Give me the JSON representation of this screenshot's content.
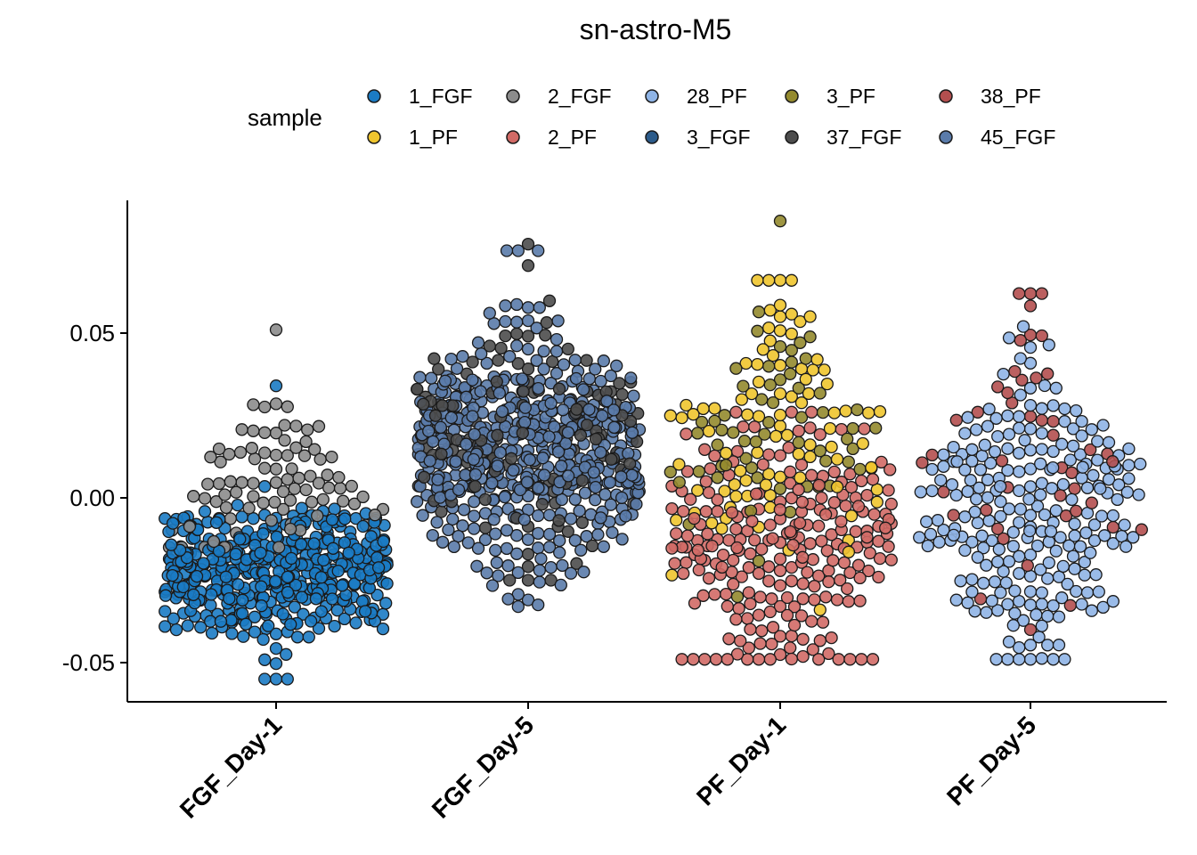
{
  "chart_data": {
    "type": "scatter",
    "subtype": "beeswarm",
    "title": "sn-astro-M5",
    "xlabel": "",
    "ylabel": "",
    "categories": [
      "FGF_Day-1",
      "FGF_Day-5",
      "PF_Day-1",
      "PF_Day-5"
    ],
    "yticks": [
      -0.05,
      0.0,
      0.05
    ],
    "ytick_labels": [
      "-0.05",
      "0.00",
      "0.05"
    ],
    "ylim": [
      -0.062,
      0.09
    ],
    "grid": false,
    "legend": {
      "title": "sample",
      "position": "top",
      "entries": [
        {
          "name": "1_FGF",
          "color": "#1B7BC4"
        },
        {
          "name": "1_PF",
          "color": "#EFC52E"
        },
        {
          "name": "2_FGF",
          "color": "#8C8C8C"
        },
        {
          "name": "2_PF",
          "color": "#D26A66"
        },
        {
          "name": "28_PF",
          "color": "#8FB4E6"
        },
        {
          "name": "3_FGF",
          "color": "#2C5B8A"
        },
        {
          "name": "3_PF",
          "color": "#948A2E"
        },
        {
          "name": "37_FGF",
          "color": "#4D4D4D"
        },
        {
          "name": "38_PF",
          "color": "#B44F4F"
        },
        {
          "name": "45_FGF",
          "color": "#5A7BAA"
        }
      ]
    },
    "series": [
      {
        "category": "FGF_Day-1",
        "groups": [
          {
            "sample": "1_FGF",
            "n": 440,
            "mean": -0.022,
            "sd": 0.011,
            "min": -0.055,
            "max": 0.034
          },
          {
            "sample": "2_FGF",
            "n": 90,
            "mean": 0.002,
            "sd": 0.011,
            "min": -0.015,
            "max": 0.051
          }
        ]
      },
      {
        "category": "FGF_Day-5",
        "groups": [
          {
            "sample": "45_FGF",
            "n": 480,
            "mean": 0.013,
            "sd": 0.017,
            "min": -0.033,
            "max": 0.075
          },
          {
            "sample": "37_FGF",
            "n": 150,
            "mean": 0.02,
            "sd": 0.019,
            "min": -0.025,
            "max": 0.077
          }
        ]
      },
      {
        "category": "PF_Day-1",
        "groups": [
          {
            "sample": "2_PF",
            "n": 240,
            "mean": -0.015,
            "sd": 0.018,
            "min": -0.049,
            "max": 0.026
          },
          {
            "sample": "1_PF",
            "n": 90,
            "mean": 0.02,
            "sd": 0.023,
            "min": -0.034,
            "max": 0.066
          },
          {
            "sample": "3_PF",
            "n": 60,
            "mean": 0.02,
            "sd": 0.017,
            "min": -0.03,
            "max": 0.084
          }
        ]
      },
      {
        "category": "PF_Day-5",
        "groups": [
          {
            "sample": "28_PF",
            "n": 240,
            "mean": -0.004,
            "sd": 0.02,
            "min": -0.049,
            "max": 0.052
          },
          {
            "sample": "38_PF",
            "n": 45,
            "mean": 0.012,
            "sd": 0.028,
            "min": -0.04,
            "max": 0.062
          }
        ]
      }
    ]
  }
}
